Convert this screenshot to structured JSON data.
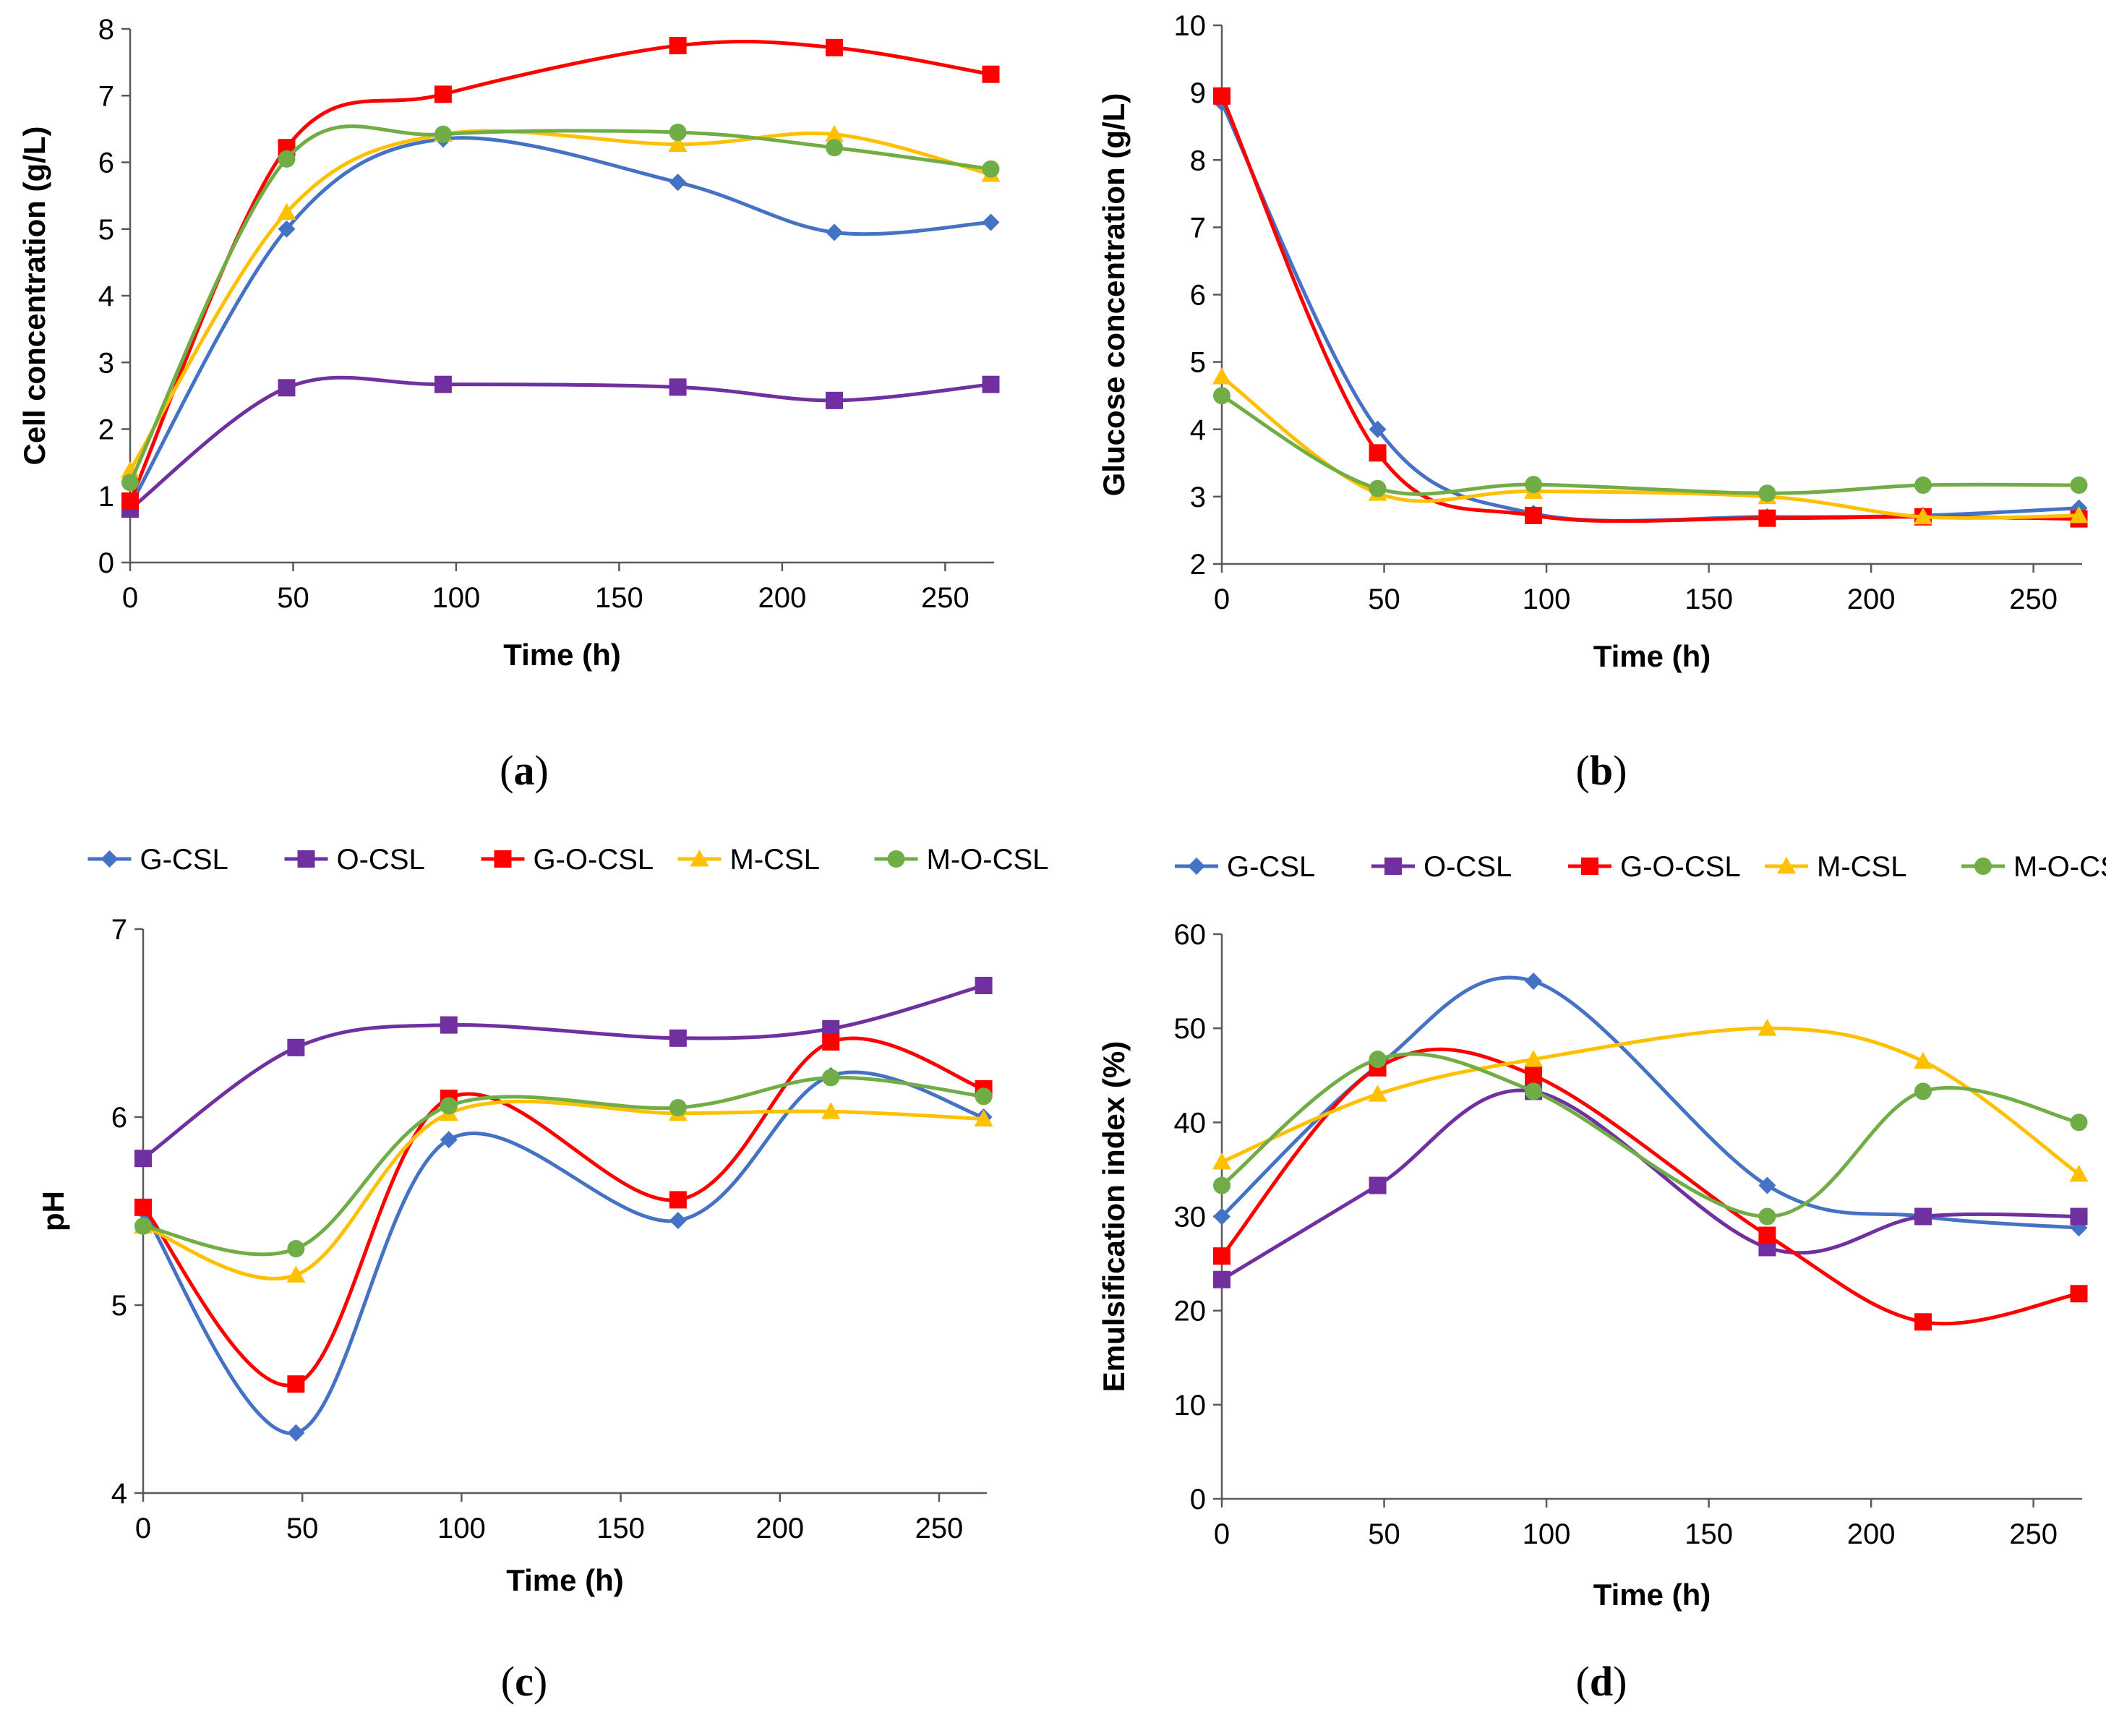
{
  "figure": {
    "series_names": [
      "G-CSL",
      "O-CSL",
      "G-O-CSL",
      "M-CSL",
      "M-O-CSL"
    ],
    "series_colors": [
      "#4472c4",
      "#7030a0",
      "#ff0000",
      "#ffc000",
      "#70ad47"
    ],
    "series_markers": [
      "diamond",
      "square",
      "square",
      "triangle",
      "circle"
    ]
  },
  "chart_data": [
    {
      "id": "a",
      "type": "line",
      "caption": "(a)",
      "title": "",
      "xlabel": "Time (h)",
      "ylabel": "Cell concentration (g/L)",
      "xlim": [
        0,
        265
      ],
      "ylim": [
        0,
        8
      ],
      "xticks": [
        0,
        50,
        100,
        150,
        200,
        250
      ],
      "yticks": [
        0,
        1,
        2,
        3,
        4,
        5,
        6,
        7,
        8
      ],
      "legend": false,
      "x": [
        0,
        48,
        96,
        168,
        216,
        264
      ],
      "series": [
        {
          "name": "G-CSL",
          "values": [
            0.85,
            5.0,
            6.35,
            5.7,
            4.95,
            5.1
          ]
        },
        {
          "name": "O-CSL",
          "values": [
            0.8,
            2.62,
            2.67,
            2.63,
            2.43,
            2.67
          ]
        },
        {
          "name": "G-O-CSL",
          "values": [
            0.92,
            6.22,
            7.02,
            7.75,
            7.72,
            7.32
          ]
        },
        {
          "name": "M-CSL",
          "values": [
            1.38,
            5.25,
            6.42,
            6.27,
            6.42,
            5.82
          ]
        },
        {
          "name": "M-O-CSL",
          "values": [
            1.2,
            6.05,
            6.42,
            6.45,
            6.22,
            5.9
          ]
        }
      ]
    },
    {
      "id": "b",
      "type": "line",
      "caption": "(b)",
      "title": "",
      "xlabel": "Time (h)",
      "ylabel": "Glucose concentration (g/L)",
      "xlim": [
        0,
        265
      ],
      "ylim": [
        2,
        10
      ],
      "xticks": [
        0,
        50,
        100,
        150,
        200,
        250
      ],
      "yticks": [
        2,
        3,
        4,
        5,
        6,
        7,
        8,
        9,
        10
      ],
      "legend": false,
      "x": [
        0,
        48,
        96,
        168,
        216,
        264
      ],
      "series": [
        {
          "name": "G-CSL",
          "values": [
            8.85,
            4.0,
            2.75,
            2.7,
            2.72,
            2.83
          ]
        },
        {
          "name": "G-O-CSL",
          "values": [
            8.95,
            3.65,
            2.72,
            2.68,
            2.7,
            2.67
          ]
        },
        {
          "name": "M-CSL",
          "values": [
            4.78,
            3.05,
            3.08,
            3.0,
            2.7,
            2.72
          ]
        },
        {
          "name": "M-O-CSL",
          "values": [
            4.5,
            3.12,
            3.18,
            3.05,
            3.17,
            3.17
          ]
        }
      ]
    },
    {
      "id": "c",
      "type": "line",
      "caption": "(c)",
      "title": "",
      "xlabel": "Time (h)",
      "ylabel": "pH",
      "xlim": [
        0,
        265
      ],
      "ylim": [
        4,
        7
      ],
      "xticks": [
        0,
        50,
        100,
        150,
        200,
        250
      ],
      "yticks": [
        4,
        5,
        6,
        7
      ],
      "legend": "top",
      "x": [
        0,
        48,
        96,
        168,
        216,
        264
      ],
      "series": [
        {
          "name": "G-CSL",
          "values": [
            5.5,
            4.32,
            5.88,
            5.45,
            6.22,
            6.0
          ]
        },
        {
          "name": "O-CSL",
          "values": [
            5.78,
            6.37,
            6.49,
            6.42,
            6.47,
            6.7
          ]
        },
        {
          "name": "G-O-CSL",
          "values": [
            5.52,
            4.58,
            6.1,
            5.56,
            6.4,
            6.15
          ]
        },
        {
          "name": "M-CSL",
          "values": [
            5.42,
            5.16,
            6.02,
            6.02,
            6.03,
            5.99
          ]
        },
        {
          "name": "M-O-CSL",
          "values": [
            5.42,
            5.3,
            6.06,
            6.05,
            6.21,
            6.11
          ]
        }
      ]
    },
    {
      "id": "d",
      "type": "line",
      "caption": "(d)",
      "title": "",
      "xlabel": "Time (h)",
      "ylabel": "Emulsification index (%)",
      "xlim": [
        0,
        265
      ],
      "ylim": [
        0,
        60
      ],
      "xticks": [
        0,
        50,
        100,
        150,
        200,
        250
      ],
      "yticks": [
        0,
        10,
        20,
        30,
        40,
        50,
        60
      ],
      "legend": "top",
      "x": [
        0,
        48,
        96,
        168,
        216,
        264
      ],
      "series": [
        {
          "name": "G-CSL",
          "values": [
            30.0,
            46.0,
            55.0,
            33.3,
            30.0,
            28.8
          ]
        },
        {
          "name": "O-CSL",
          "values": [
            23.3,
            33.3,
            43.3,
            26.7,
            30.0,
            30.0
          ]
        },
        {
          "name": "G-O-CSL",
          "values": [
            25.8,
            45.8,
            45.0,
            28.0,
            18.8,
            21.8
          ]
        },
        {
          "name": "M-CSL",
          "values": [
            35.8,
            43.0,
            46.7,
            50.0,
            46.5,
            34.5
          ]
        },
        {
          "name": "M-O-CSL",
          "values": [
            33.3,
            46.7,
            43.3,
            30.0,
            43.3,
            40.0
          ]
        }
      ]
    }
  ]
}
